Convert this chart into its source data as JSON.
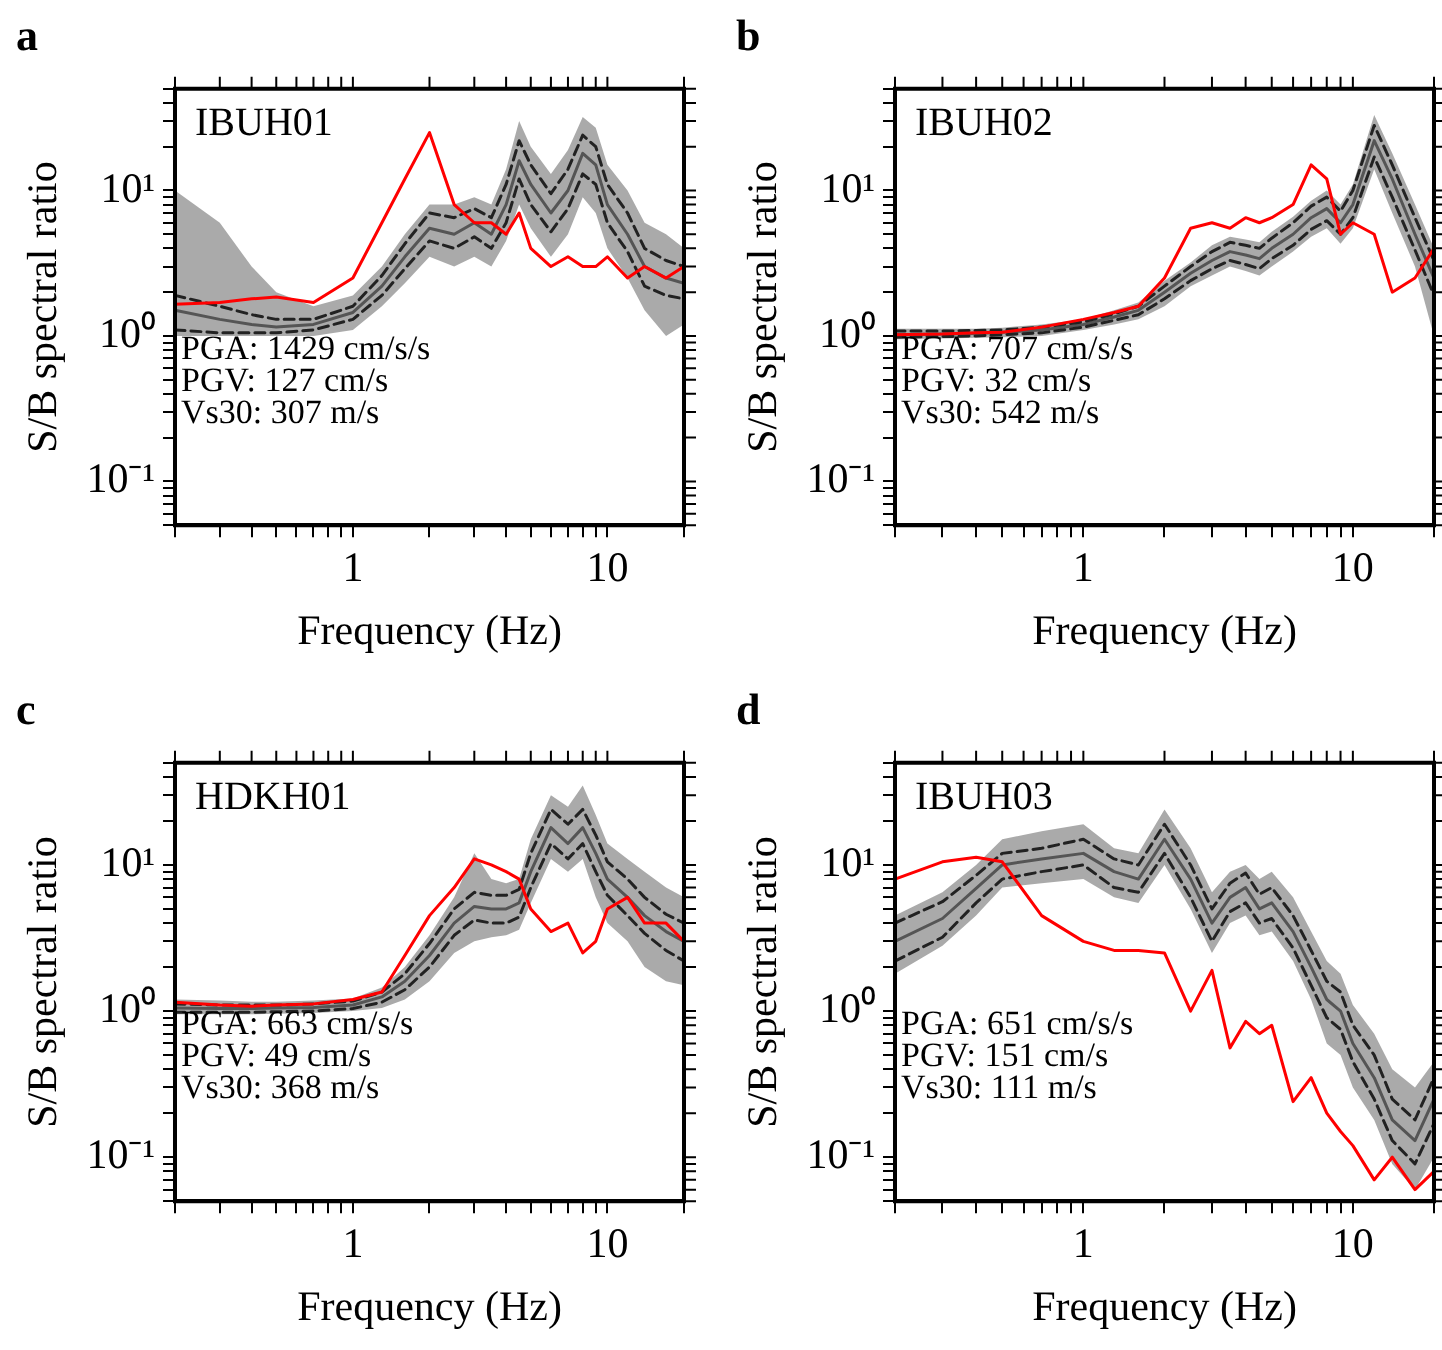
{
  "chart_data": [
    {
      "type": "line",
      "title": "a",
      "xlabel": "Frequency (Hz)",
      "ylabel": "S/B spectral ratio",
      "log": "xy",
      "grid": false,
      "legend": false,
      "marker": "none",
      "annotations": [
        "IBUH01",
        "PGA: 1429 cm/s/s",
        "PGV: 127 cm/s",
        "Vs30: 307 m/s"
      ],
      "xlim": [
        0.2,
        20
      ],
      "ylim": [
        0.05,
        50
      ],
      "xticks": [
        {
          "value": 0.2,
          "label": null
        },
        {
          "value": 0.3,
          "label": null
        },
        {
          "value": 0.4,
          "label": null
        },
        {
          "value": 0.5,
          "label": null
        },
        {
          "value": 0.6,
          "label": null
        },
        {
          "value": 0.7,
          "label": null
        },
        {
          "value": 0.8,
          "label": null
        },
        {
          "value": 0.9,
          "label": null
        },
        {
          "value": 1,
          "label": "1"
        },
        {
          "value": 2,
          "label": null
        },
        {
          "value": 3,
          "label": null
        },
        {
          "value": 4,
          "label": null
        },
        {
          "value": 5,
          "label": null
        },
        {
          "value": 6,
          "label": null
        },
        {
          "value": 7,
          "label": null
        },
        {
          "value": 8,
          "label": null
        },
        {
          "value": 9,
          "label": null
        },
        {
          "value": 10,
          "label": "10"
        },
        {
          "value": 20,
          "label": null
        }
      ],
      "yticks": [
        {
          "value": 0.05,
          "label": null
        },
        {
          "value": 0.06,
          "label": null
        },
        {
          "value": 0.07,
          "label": null
        },
        {
          "value": 0.08,
          "label": null
        },
        {
          "value": 0.09,
          "label": null
        },
        {
          "value": 0.1,
          "label": "10⁻¹"
        },
        {
          "value": 0.2,
          "label": null
        },
        {
          "value": 0.3,
          "label": null
        },
        {
          "value": 0.4,
          "label": null
        },
        {
          "value": 0.5,
          "label": null
        },
        {
          "value": 0.6,
          "label": null
        },
        {
          "value": 0.7,
          "label": null
        },
        {
          "value": 0.8,
          "label": null
        },
        {
          "value": 0.9,
          "label": null
        },
        {
          "value": 1,
          "label": "10⁰"
        },
        {
          "value": 2,
          "label": null
        },
        {
          "value": 3,
          "label": null
        },
        {
          "value": 4,
          "label": null
        },
        {
          "value": 5,
          "label": null
        },
        {
          "value": 6,
          "label": null
        },
        {
          "value": 7,
          "label": null
        },
        {
          "value": 8,
          "label": null
        },
        {
          "value": 9,
          "label": null
        },
        {
          "value": 10,
          "label": "10¹"
        },
        {
          "value": 20,
          "label": null
        },
        {
          "value": 30,
          "label": null
        },
        {
          "value": 40,
          "label": null
        },
        {
          "value": 50,
          "label": null
        }
      ],
      "x": [
        0.2,
        0.3,
        0.4,
        0.5,
        0.7,
        1,
        1.3,
        1.6,
        2,
        2.5,
        3,
        3.5,
        4,
        4.5,
        5,
        6,
        7,
        8,
        9,
        10,
        12,
        14,
        17,
        20
      ],
      "series": [
        {
          "color": "#555555",
          "values": [
            1.5,
            1.3,
            1.2,
            1.15,
            1.2,
            1.45,
            2.2,
            3.5,
            5.5,
            5,
            6,
            5,
            8,
            16,
            11,
            7,
            10,
            18,
            15,
            8,
            5,
            3,
            2.5,
            2.3
          ],
          "lower": [
            1,
            1,
            1,
            1,
            1,
            1.1,
            1.6,
            2.3,
            3.5,
            3,
            3.5,
            3,
            4.5,
            8,
            5.5,
            3.5,
            5,
            9,
            7,
            4,
            2.5,
            1.5,
            1,
            1.2
          ],
          "upper": [
            10,
            6,
            3,
            2,
            1.6,
            1.9,
            3,
            5,
            8,
            8,
            9,
            8,
            14,
            30,
            20,
            13,
            19,
            32,
            27,
            15,
            10,
            6,
            5,
            4
          ]
        },
        {
          "color": "#222222",
          "line_style": "dashed",
          "values": [
            1.9,
            1.6,
            1.4,
            1.3,
            1.3,
            1.6,
            2.6,
            4.3,
            7,
            6.5,
            7.5,
            6.5,
            11,
            22,
            15,
            9.5,
            14,
            24,
            20,
            11,
            7,
            4,
            3.3,
            3
          ]
        },
        {
          "color": "#222222",
          "line_style": "dashed",
          "values": [
            1.1,
            1.05,
            1.05,
            1.05,
            1.1,
            1.3,
            1.9,
            2.9,
            4.5,
            4,
            4.8,
            4,
            6,
            12,
            8,
            5.2,
            7.5,
            13,
            11,
            6,
            3.8,
            2.2,
            1.9,
            1.8
          ]
        },
        {
          "color": "#ff0000",
          "values": [
            1.65,
            1.7,
            1.8,
            1.85,
            1.7,
            2.5,
            6,
            12,
            25,
            8,
            6,
            6,
            5,
            7,
            4,
            3,
            3.5,
            3,
            3,
            3.5,
            2.5,
            3,
            2.5,
            3
          ]
        }
      ]
    },
    {
      "type": "line",
      "title": "b",
      "xlabel": "Frequency (Hz)",
      "ylabel": "S/B spectral ratio",
      "log": "xy",
      "grid": false,
      "legend": false,
      "marker": "none",
      "annotations": [
        "IBUH02",
        "PGA: 707 cm/s/s",
        "PGV: 32 cm/s",
        "Vs30: 542 m/s"
      ],
      "xlim": [
        0.2,
        20
      ],
      "ylim": [
        0.05,
        50
      ],
      "xticks": [
        {
          "value": 0.2,
          "label": null
        },
        {
          "value": 0.3,
          "label": null
        },
        {
          "value": 0.4,
          "label": null
        },
        {
          "value": 0.5,
          "label": null
        },
        {
          "value": 0.6,
          "label": null
        },
        {
          "value": 0.7,
          "label": null
        },
        {
          "value": 0.8,
          "label": null
        },
        {
          "value": 0.9,
          "label": null
        },
        {
          "value": 1,
          "label": "1"
        },
        {
          "value": 2,
          "label": null
        },
        {
          "value": 3,
          "label": null
        },
        {
          "value": 4,
          "label": null
        },
        {
          "value": 5,
          "label": null
        },
        {
          "value": 6,
          "label": null
        },
        {
          "value": 7,
          "label": null
        },
        {
          "value": 8,
          "label": null
        },
        {
          "value": 9,
          "label": null
        },
        {
          "value": 10,
          "label": "10"
        },
        {
          "value": 20,
          "label": null
        }
      ],
      "yticks": [
        {
          "value": 0.05,
          "label": null
        },
        {
          "value": 0.06,
          "label": null
        },
        {
          "value": 0.07,
          "label": null
        },
        {
          "value": 0.08,
          "label": null
        },
        {
          "value": 0.09,
          "label": null
        },
        {
          "value": 0.1,
          "label": "10⁻¹"
        },
        {
          "value": 0.2,
          "label": null
        },
        {
          "value": 0.3,
          "label": null
        },
        {
          "value": 0.4,
          "label": null
        },
        {
          "value": 0.5,
          "label": null
        },
        {
          "value": 0.6,
          "label": null
        },
        {
          "value": 0.7,
          "label": null
        },
        {
          "value": 0.8,
          "label": null
        },
        {
          "value": 0.9,
          "label": null
        },
        {
          "value": 1,
          "label": "10⁰"
        },
        {
          "value": 2,
          "label": null
        },
        {
          "value": 3,
          "label": null
        },
        {
          "value": 4,
          "label": null
        },
        {
          "value": 5,
          "label": null
        },
        {
          "value": 6,
          "label": null
        },
        {
          "value": 7,
          "label": null
        },
        {
          "value": 8,
          "label": null
        },
        {
          "value": 9,
          "label": null
        },
        {
          "value": 10,
          "label": "10¹"
        },
        {
          "value": 20,
          "label": null
        },
        {
          "value": 30,
          "label": null
        },
        {
          "value": 40,
          "label": null
        },
        {
          "value": 50,
          "label": null
        }
      ],
      "x": [
        0.2,
        0.3,
        0.4,
        0.5,
        0.7,
        1,
        1.3,
        1.6,
        2,
        2.5,
        3,
        3.5,
        4,
        4.5,
        5,
        6,
        7,
        8,
        9,
        10,
        12,
        14,
        17,
        20
      ],
      "series": [
        {
          "color": "#555555",
          "values": [
            1.02,
            1.03,
            1.04,
            1.06,
            1.1,
            1.2,
            1.35,
            1.5,
            2,
            2.7,
            3.3,
            3.8,
            3.6,
            3.4,
            4,
            5,
            6.5,
            7.5,
            6,
            8,
            22,
            12,
            5,
            2.5
          ],
          "lower": [
            0.95,
            0.96,
            0.97,
            0.98,
            1,
            1.1,
            1.2,
            1.3,
            1.6,
            2.2,
            2.6,
            3,
            2.8,
            2.6,
            3,
            3.8,
            4.8,
            5.5,
            4.3,
            5.5,
            14,
            7,
            3,
            1
          ],
          "upper": [
            1.12,
            1.12,
            1.12,
            1.14,
            1.2,
            1.3,
            1.5,
            1.7,
            2.4,
            3.2,
            4.2,
            4.8,
            4.6,
            4.4,
            5.2,
            6.6,
            8.5,
            10,
            8,
            11,
            33,
            18,
            8,
            4
          ]
        },
        {
          "color": "#222222",
          "line_style": "dashed",
          "values": [
            1.08,
            1.08,
            1.09,
            1.1,
            1.15,
            1.25,
            1.42,
            1.6,
            2.2,
            3,
            3.8,
            4.4,
            4.2,
            4,
            4.7,
            6,
            7.8,
            9,
            7.2,
            10,
            28,
            15,
            6.5,
            3.3
          ]
        },
        {
          "color": "#222222",
          "line_style": "dashed",
          "values": [
            0.98,
            0.99,
            1,
            1.02,
            1.05,
            1.15,
            1.28,
            1.4,
            1.8,
            2.4,
            2.9,
            3.3,
            3.1,
            2.9,
            3.4,
            4.2,
            5.4,
            6.2,
            5,
            6.5,
            17,
            9,
            3.9,
            1.9
          ]
        },
        {
          "color": "#ff0000",
          "values": [
            1.02,
            1.03,
            1.05,
            1.06,
            1.15,
            1.3,
            1.45,
            1.6,
            2.5,
            5.5,
            6,
            5.5,
            6.5,
            6,
            6.5,
            8,
            15,
            12,
            5,
            6,
            5,
            2,
            2.5,
            4
          ]
        }
      ]
    },
    {
      "type": "line",
      "title": "c",
      "xlabel": "Frequency (Hz)",
      "ylabel": "S/B spectral ratio",
      "log": "xy",
      "grid": false,
      "legend": false,
      "marker": "none",
      "annotations": [
        "HDKH01",
        "PGA: 663 cm/s/s",
        "PGV: 49 cm/s",
        "Vs30: 368 m/s"
      ],
      "xlim": [
        0.2,
        20
      ],
      "ylim": [
        0.05,
        50
      ],
      "xticks": [
        {
          "value": 0.2,
          "label": null
        },
        {
          "value": 0.3,
          "label": null
        },
        {
          "value": 0.4,
          "label": null
        },
        {
          "value": 0.5,
          "label": null
        },
        {
          "value": 0.6,
          "label": null
        },
        {
          "value": 0.7,
          "label": null
        },
        {
          "value": 0.8,
          "label": null
        },
        {
          "value": 0.9,
          "label": null
        },
        {
          "value": 1,
          "label": "1"
        },
        {
          "value": 2,
          "label": null
        },
        {
          "value": 3,
          "label": null
        },
        {
          "value": 4,
          "label": null
        },
        {
          "value": 5,
          "label": null
        },
        {
          "value": 6,
          "label": null
        },
        {
          "value": 7,
          "label": null
        },
        {
          "value": 8,
          "label": null
        },
        {
          "value": 9,
          "label": null
        },
        {
          "value": 10,
          "label": "10"
        },
        {
          "value": 20,
          "label": null
        }
      ],
      "yticks": [
        {
          "value": 0.05,
          "label": null
        },
        {
          "value": 0.06,
          "label": null
        },
        {
          "value": 0.07,
          "label": null
        },
        {
          "value": 0.08,
          "label": null
        },
        {
          "value": 0.09,
          "label": null
        },
        {
          "value": 0.1,
          "label": "10⁻¹"
        },
        {
          "value": 0.2,
          "label": null
        },
        {
          "value": 0.3,
          "label": null
        },
        {
          "value": 0.4,
          "label": null
        },
        {
          "value": 0.5,
          "label": null
        },
        {
          "value": 0.6,
          "label": null
        },
        {
          "value": 0.7,
          "label": null
        },
        {
          "value": 0.8,
          "label": null
        },
        {
          "value": 0.9,
          "label": null
        },
        {
          "value": 1,
          "label": "10⁰"
        },
        {
          "value": 2,
          "label": null
        },
        {
          "value": 3,
          "label": null
        },
        {
          "value": 4,
          "label": null
        },
        {
          "value": 5,
          "label": null
        },
        {
          "value": 6,
          "label": null
        },
        {
          "value": 7,
          "label": null
        },
        {
          "value": 8,
          "label": null
        },
        {
          "value": 9,
          "label": null
        },
        {
          "value": 10,
          "label": "10¹"
        },
        {
          "value": 20,
          "label": null
        },
        {
          "value": 30,
          "label": null
        },
        {
          "value": 40,
          "label": null
        },
        {
          "value": 50,
          "label": null
        }
      ],
      "x": [
        0.2,
        0.3,
        0.4,
        0.5,
        0.7,
        1,
        1.3,
        1.6,
        2,
        2.5,
        3,
        3.5,
        4,
        4.5,
        5,
        6,
        7,
        8,
        9,
        10,
        12,
        14,
        17,
        20
      ],
      "series": [
        {
          "color": "#555555",
          "values": [
            1.05,
            1.04,
            1.04,
            1.05,
            1.06,
            1.1,
            1.25,
            1.6,
            2.4,
            4,
            5.2,
            5,
            5,
            5.5,
            9,
            18,
            14,
            18,
            12,
            8,
            6,
            4.5,
            3.5,
            3
          ],
          "lower": [
            0.95,
            0.95,
            0.95,
            0.96,
            0.97,
            1,
            1.05,
            1.2,
            1.6,
            2.5,
            3,
            3.2,
            3.3,
            3.6,
            5.5,
            11,
            9,
            11,
            6,
            4,
            3,
            2,
            1.6,
            1.5
          ],
          "upper": [
            1.2,
            1.18,
            1.16,
            1.16,
            1.18,
            1.22,
            1.45,
            2,
            3.3,
            6,
            12,
            8,
            7.5,
            8,
            15,
            30,
            25,
            35,
            22,
            14,
            11,
            9,
            7,
            6
          ]
        },
        {
          "color": "#222222",
          "line_style": "dashed",
          "values": [
            1.12,
            1.1,
            1.1,
            1.1,
            1.12,
            1.17,
            1.35,
            1.8,
            2.9,
            5,
            6.5,
            6.2,
            6.2,
            6.8,
            12,
            24,
            19,
            24,
            16,
            10.5,
            8,
            6,
            4.6,
            4
          ]
        },
        {
          "color": "#222222",
          "line_style": "dashed",
          "values": [
            0.98,
            0.98,
            0.98,
            0.99,
            1,
            1.04,
            1.15,
            1.4,
            2,
            3.3,
            4.2,
            4,
            4,
            4.4,
            7,
            14,
            11,
            14,
            9,
            6.2,
            4.5,
            3.4,
            2.6,
            2.2
          ]
        },
        {
          "color": "#ff0000",
          "values": [
            1.15,
            1.1,
            1.08,
            1.1,
            1.12,
            1.2,
            1.35,
            2.4,
            4.5,
            7,
            11,
            10,
            9,
            8,
            5,
            3.5,
            4,
            2.5,
            3,
            5,
            6,
            4,
            4,
            3
          ]
        }
      ]
    },
    {
      "type": "line",
      "title": "d",
      "xlabel": "Frequency (Hz)",
      "ylabel": "S/B spectral ratio",
      "log": "xy",
      "grid": false,
      "legend": false,
      "marker": "none",
      "annotations": [
        "IBUH03",
        "PGA: 651 cm/s/s",
        "PGV: 151 cm/s",
        "Vs30: 111 m/s"
      ],
      "xlim": [
        0.2,
        20
      ],
      "ylim": [
        0.05,
        50
      ],
      "xticks": [
        {
          "value": 0.2,
          "label": null
        },
        {
          "value": 0.3,
          "label": null
        },
        {
          "value": 0.4,
          "label": null
        },
        {
          "value": 0.5,
          "label": null
        },
        {
          "value": 0.6,
          "label": null
        },
        {
          "value": 0.7,
          "label": null
        },
        {
          "value": 0.8,
          "label": null
        },
        {
          "value": 0.9,
          "label": null
        },
        {
          "value": 1,
          "label": "1"
        },
        {
          "value": 2,
          "label": null
        },
        {
          "value": 3,
          "label": null
        },
        {
          "value": 4,
          "label": null
        },
        {
          "value": 5,
          "label": null
        },
        {
          "value": 6,
          "label": null
        },
        {
          "value": 7,
          "label": null
        },
        {
          "value": 8,
          "label": null
        },
        {
          "value": 9,
          "label": null
        },
        {
          "value": 10,
          "label": "10"
        },
        {
          "value": 20,
          "label": null
        }
      ],
      "yticks": [
        {
          "value": 0.05,
          "label": null
        },
        {
          "value": 0.06,
          "label": null
        },
        {
          "value": 0.07,
          "label": null
        },
        {
          "value": 0.08,
          "label": null
        },
        {
          "value": 0.09,
          "label": null
        },
        {
          "value": 0.1,
          "label": "10⁻¹"
        },
        {
          "value": 0.2,
          "label": null
        },
        {
          "value": 0.3,
          "label": null
        },
        {
          "value": 0.4,
          "label": null
        },
        {
          "value": 0.5,
          "label": null
        },
        {
          "value": 0.6,
          "label": null
        },
        {
          "value": 0.7,
          "label": null
        },
        {
          "value": 0.8,
          "label": null
        },
        {
          "value": 0.9,
          "label": null
        },
        {
          "value": 1,
          "label": "10⁰"
        },
        {
          "value": 2,
          "label": null
        },
        {
          "value": 3,
          "label": null
        },
        {
          "value": 4,
          "label": null
        },
        {
          "value": 5,
          "label": null
        },
        {
          "value": 6,
          "label": null
        },
        {
          "value": 7,
          "label": null
        },
        {
          "value": 8,
          "label": null
        },
        {
          "value": 9,
          "label": null
        },
        {
          "value": 10,
          "label": "10¹"
        },
        {
          "value": 20,
          "label": null
        },
        {
          "value": 30,
          "label": null
        },
        {
          "value": 40,
          "label": null
        },
        {
          "value": 50,
          "label": null
        }
      ],
      "x": [
        0.2,
        0.3,
        0.4,
        0.5,
        0.7,
        1,
        1.3,
        1.6,
        2,
        2.5,
        3,
        3.5,
        4,
        4.5,
        5,
        6,
        7,
        8,
        9,
        10,
        12,
        14,
        17,
        20
      ],
      "series": [
        {
          "color": "#555555",
          "values": [
            3,
            4.3,
            6.9,
            10,
            11,
            12,
            9,
            8,
            15,
            8,
            4,
            6,
            7,
            5,
            5.5,
            3.5,
            2,
            1.2,
            1,
            0.6,
            0.35,
            0.18,
            0.13,
            0.25
          ],
          "lower": [
            1.8,
            2.8,
            4.5,
            7,
            7.5,
            8,
            6,
            5.5,
            10,
            5,
            2.5,
            4,
            4.5,
            3.3,
            3.5,
            2.2,
            1.2,
            0.6,
            0.5,
            0.3,
            0.18,
            0.09,
            0.06,
            0.1
          ],
          "upper": [
            4.5,
            6.5,
            10,
            15,
            17,
            19,
            13,
            12,
            24,
            13,
            6.5,
            9,
            10,
            8,
            9,
            6,
            3.5,
            2.2,
            1.8,
            1.1,
            0.7,
            0.4,
            0.3,
            0.45
          ]
        },
        {
          "color": "#222222",
          "line_style": "dashed",
          "values": [
            4,
            5.6,
            8.5,
            12,
            13,
            15,
            11,
            10,
            19,
            10,
            5,
            7.5,
            8.8,
            6.3,
            7,
            4.5,
            2.6,
            1.6,
            1.35,
            0.8,
            0.5,
            0.25,
            0.18,
            0.35
          ]
        },
        {
          "color": "#222222",
          "line_style": "dashed",
          "values": [
            2.2,
            3.2,
            5.5,
            8,
            9,
            10,
            7,
            6.5,
            12,
            6,
            3,
            4.8,
            5.5,
            4,
            4.3,
            2.7,
            1.5,
            0.9,
            0.75,
            0.45,
            0.25,
            0.13,
            0.09,
            0.17
          ]
        },
        {
          "color": "#ff0000",
          "values": [
            8,
            10.5,
            11.3,
            10.5,
            4.5,
            3,
            2.6,
            2.6,
            2.5,
            1,
            1.9,
            0.56,
            0.85,
            0.7,
            0.8,
            0.24,
            0.35,
            0.2,
            0.15,
            0.12,
            0.07,
            0.1,
            0.06,
            0.08
          ]
        }
      ]
    }
  ]
}
